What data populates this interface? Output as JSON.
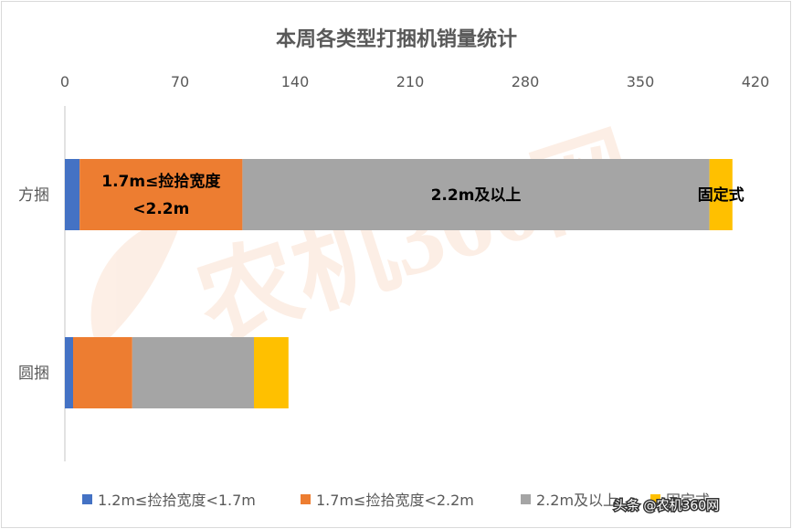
{
  "chart_data": {
    "type": "bar",
    "orientation": "horizontal",
    "stacked": true,
    "title": "本周各类型打捆机销量统计",
    "categories": [
      "方捆",
      "圆捆"
    ],
    "xlim": [
      0,
      420
    ],
    "x_ticks": [
      "0",
      "70",
      "140",
      "210",
      "280",
      "350",
      "420"
    ],
    "axis_position": "top",
    "grid": false,
    "legend_position": "bottom",
    "series": [
      {
        "name": "1.2m≤捡拾宽度<1.7m",
        "color": "#4472C4",
        "values": [
          9,
          5
        ]
      },
      {
        "name": "1.7m≤捡拾宽度<2.2m",
        "color": "#ED7D31",
        "values": [
          99,
          36
        ]
      },
      {
        "name": "2.2m及以上",
        "color": "#A5A5A5",
        "values": [
          284,
          74
        ]
      },
      {
        "name": "固定式",
        "color": "#FFC000",
        "values": [
          14,
          21
        ]
      }
    ],
    "data_labels": [
      {
        "category": "方捆",
        "series": "1.7m≤捡拾宽度<2.2m",
        "lines": [
          "1.7m≤捡拾宽度",
          "<2.2m"
        ]
      },
      {
        "category": "方捆",
        "series": "2.2m及以上",
        "lines": [
          "2.2m及以上"
        ]
      },
      {
        "category": "方捆",
        "series": "固定式",
        "lines": [
          "固定式"
        ]
      }
    ]
  },
  "watermark": {
    "text": "头条 @农机360网",
    "background_mark": "农机360网"
  }
}
